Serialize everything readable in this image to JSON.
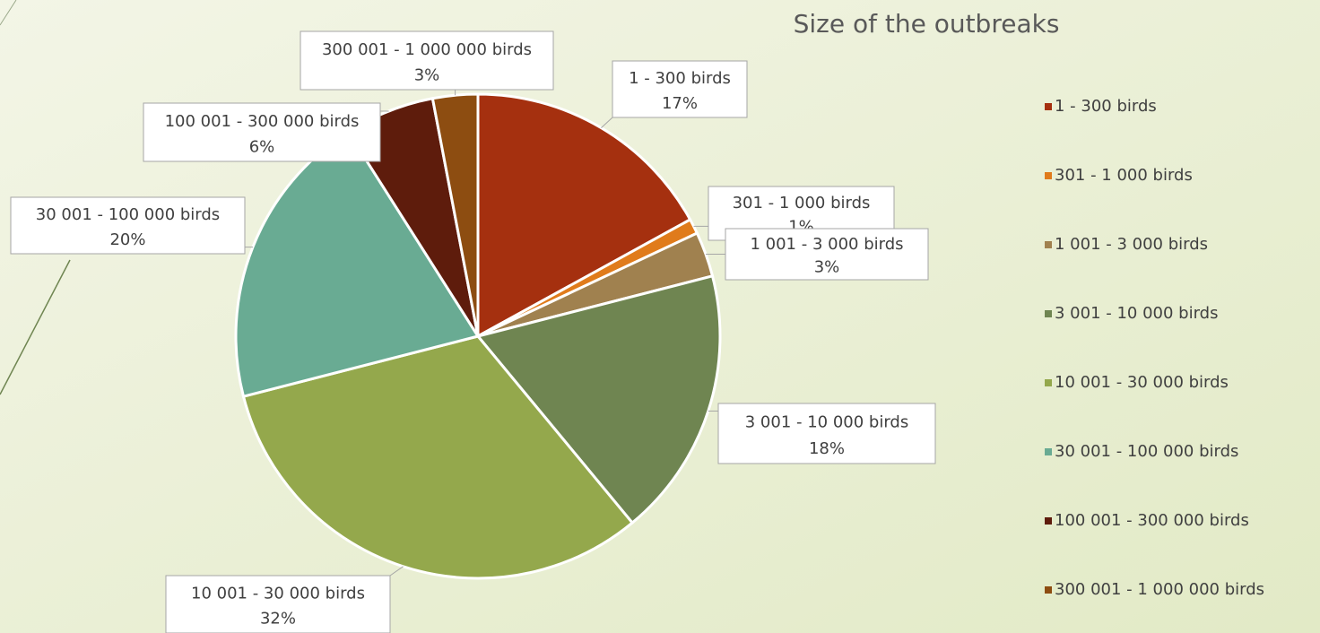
{
  "chart_data": {
    "type": "pie",
    "title": "Size of the outbreaks",
    "categories": [
      "1 - 300 birds",
      "301 - 1 000 birds",
      "1 001 - 3 000 birds",
      "3 001 -  10 000 birds",
      "10 001 - 30 000 birds",
      "30 001 - 100 000 birds",
      "100 001 - 300 000 birds",
      "300 001 - 1 000 000 birds"
    ],
    "values": [
      17,
      1,
      3,
      18,
      32,
      20,
      6,
      3
    ],
    "value_labels": [
      "17%",
      "1%",
      "3%",
      "18%",
      "32%",
      "20%",
      "6%",
      "3%"
    ],
    "colors": [
      "#a5300f",
      "#e07b1b",
      "#a0814f",
      "#6f8551",
      "#94a84c",
      "#69ab93",
      "#5e1c0c",
      "#8d4d11"
    ],
    "legend": "right"
  }
}
